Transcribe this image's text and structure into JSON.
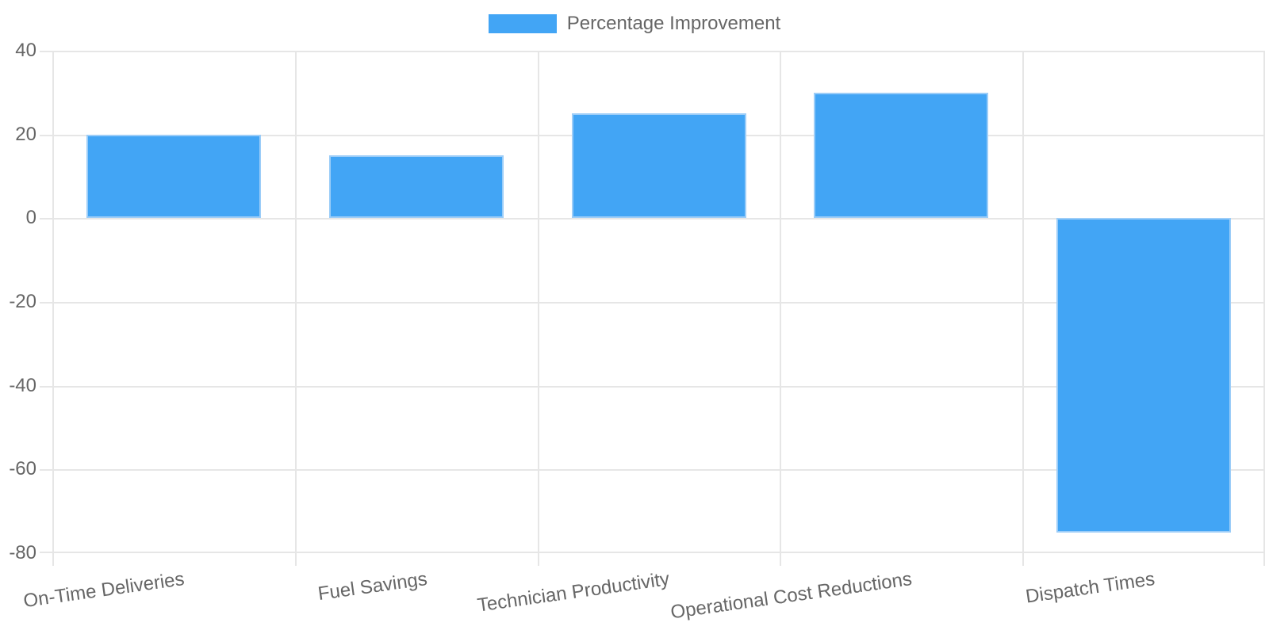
{
  "chart_data": {
    "type": "bar",
    "title": "",
    "xlabel": "",
    "ylabel": "",
    "categories": [
      "On-Time Deliveries",
      "Fuel Savings",
      "Technician Productivity",
      "Operational Cost Reductions",
      "Dispatch Times"
    ],
    "series": [
      {
        "name": "Percentage Improvement",
        "values": [
          20,
          15,
          25,
          30,
          -75
        ]
      }
    ],
    "ylim": [
      -80,
      40
    ],
    "ytick_step": 20,
    "ytick_labels": [
      "40",
      "20",
      "0",
      "-20",
      "-40",
      "-60",
      "-80"
    ],
    "grid": true,
    "legend_position": "top",
    "colors": {
      "bar_fill": "#42a5f5",
      "bar_border": "#9ccdf8",
      "axis_text": "#666666",
      "gridline": "#e6e6e6",
      "background": "#ffffff"
    }
  }
}
